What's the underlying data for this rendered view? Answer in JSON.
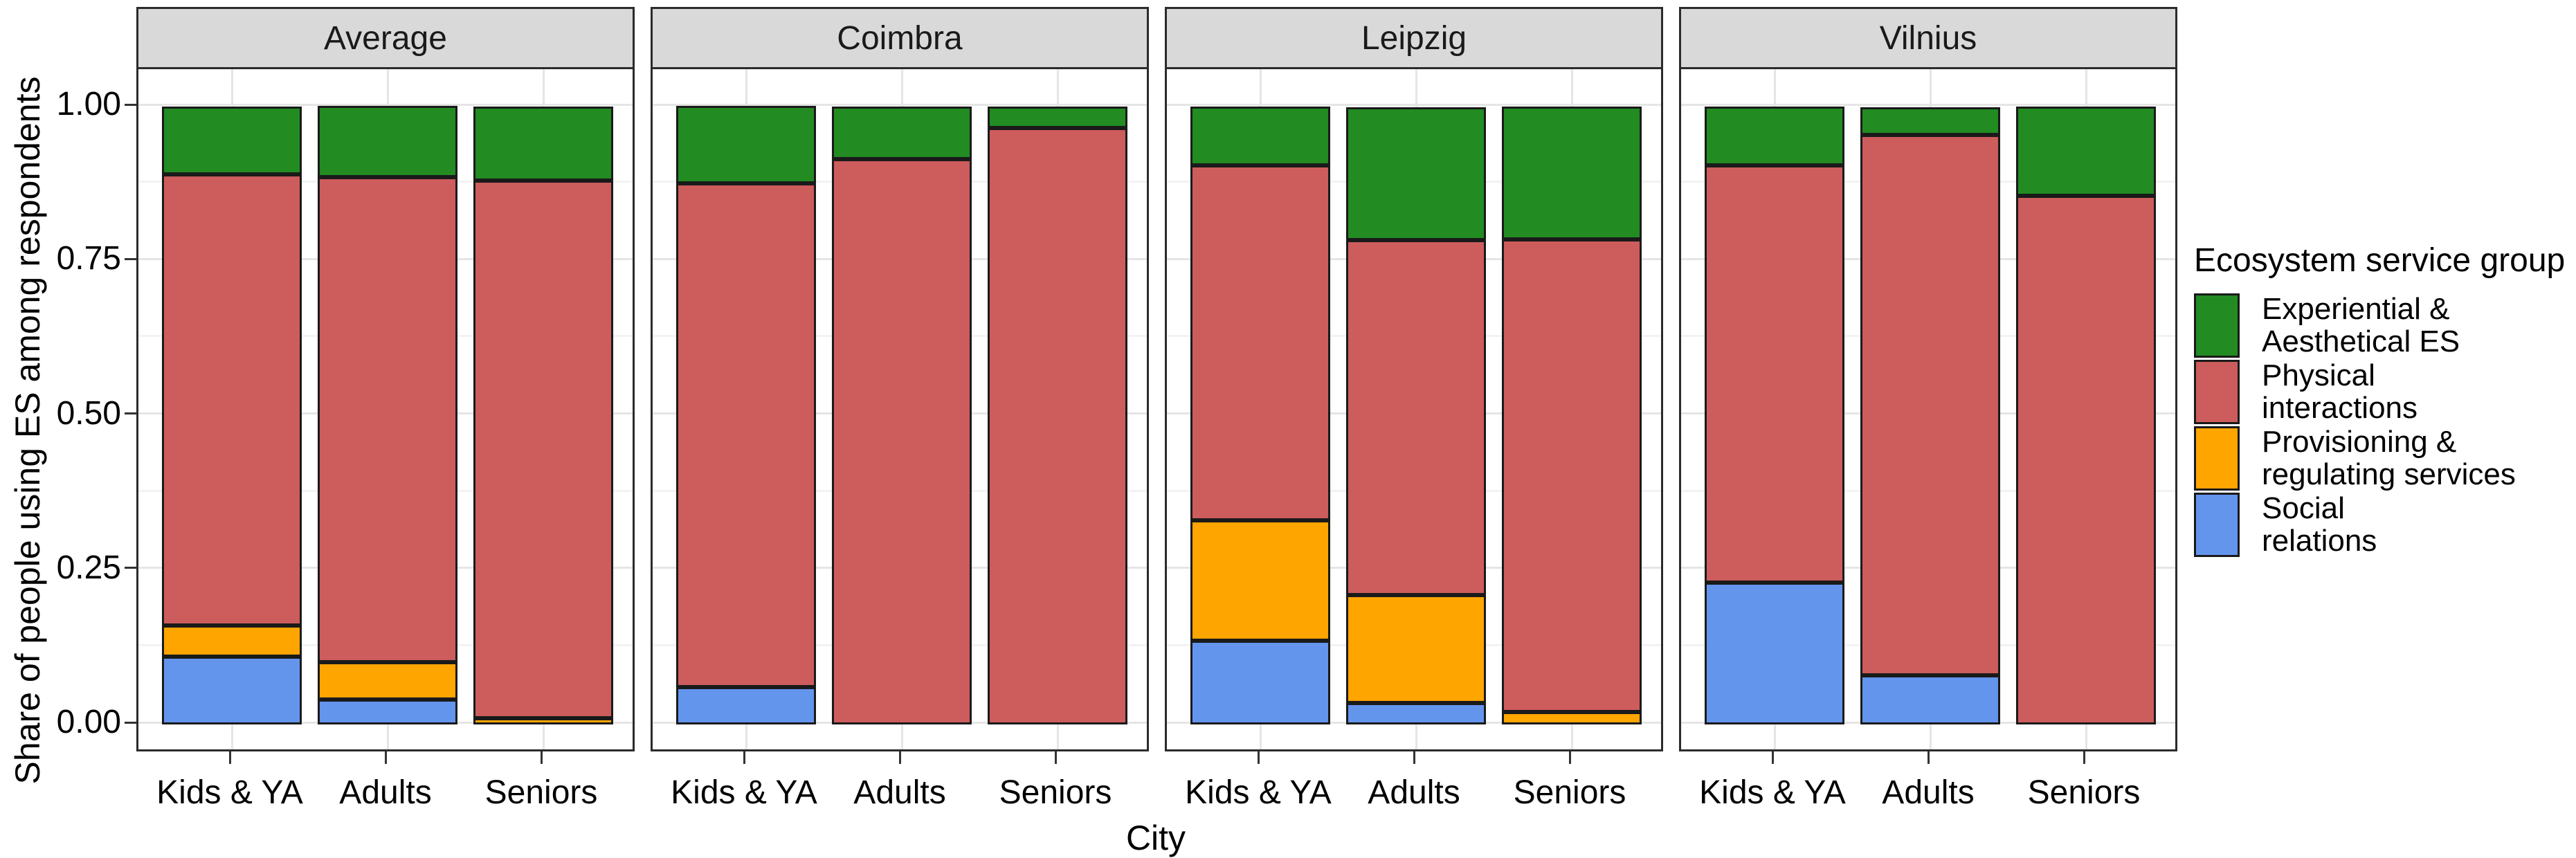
{
  "figure": {
    "y_axis": {
      "title": "Share of people using ES among respondents",
      "tick_labels": [
        "0.00",
        "0.25",
        "0.50",
        "0.75",
        "1.00"
      ],
      "tick_values": [
        0,
        0.25,
        0.5,
        0.75,
        1
      ]
    },
    "x_axis": {
      "title": "City"
    },
    "legend": {
      "title": "Ecosystem service group",
      "entries": [
        {
          "name": "Experiential & Aesthetical ES",
          "label_lines": [
            "Experiential &",
            "Aesthetical ES"
          ],
          "color": "#228B22"
        },
        {
          "name": "Physical interactions",
          "label_lines": [
            "Physical",
            "interactions"
          ],
          "color": "#CD5C5C"
        },
        {
          "name": "Provisioning & regulating services",
          "label_lines": [
            "Provisioning &",
            "regulating services"
          ],
          "color": "#FFA500"
        },
        {
          "name": "Social relations",
          "label_lines": [
            "Social",
            "relations"
          ],
          "color": "#6495ED"
        }
      ]
    },
    "colors": {
      "strip_background": "#D9D9D9",
      "panel_border": "#2b2b2b",
      "bar_outline": "#1a1a1a",
      "grid_major": "#E5E5E5",
      "grid_minor": "#F2F2F2"
    }
  },
  "chart_data": {
    "type": "bar",
    "stacked": true,
    "title": "",
    "xlabel": "City",
    "ylabel": "Share of people using ES among respondents",
    "ylim": [
      0,
      1
    ],
    "legend_position": "right",
    "grid": {
      "h_major": [
        0,
        0.25,
        0.5,
        0.75,
        1
      ],
      "h_minor": [
        0.125,
        0.375,
        0.625,
        0.875
      ]
    },
    "categories": [
      "Kids & YA",
      "Adults",
      "Seniors"
    ],
    "stack_order_bottom_to_top": [
      "Social relations",
      "Provisioning & regulating services",
      "Physical interactions",
      "Experiential & Aesthetical ES"
    ],
    "group_colors": {
      "Social relations": "#6495ED",
      "Provisioning & regulating services": "#FFA500",
      "Physical interactions": "#CD5C5C",
      "Experiential & Aesthetical ES": "#228B22"
    },
    "facets": [
      {
        "name": "Average",
        "values": {
          "Kids & YA": [
            0.11,
            0.05,
            0.73,
            0.11
          ],
          "Adults": [
            0.04,
            0.06,
            0.785,
            0.115
          ],
          "Seniors": [
            0,
            0.01,
            0.87,
            0.12
          ]
        }
      },
      {
        "name": "Coimbra",
        "values": {
          "Kids & YA": [
            0.06,
            0,
            0.815,
            0.125
          ],
          "Adults": [
            0,
            0,
            0.915,
            0.085
          ],
          "Seniors": [
            0,
            0,
            0.965,
            0.035
          ]
        }
      },
      {
        "name": "Leipzig",
        "values": {
          "Kids & YA": [
            0.135,
            0.195,
            0.575,
            0.095
          ],
          "Adults": [
            0.035,
            0.175,
            0.575,
            0.215
          ],
          "Seniors": [
            0,
            0.02,
            0.765,
            0.215
          ]
        }
      },
      {
        "name": "Vilnius",
        "values": {
          "Kids & YA": [
            0.23,
            0,
            0.675,
            0.095
          ],
          "Adults": [
            0.08,
            0,
            0.875,
            0.045
          ],
          "Seniors": [
            0,
            0,
            0.855,
            0.145
          ]
        }
      }
    ]
  }
}
